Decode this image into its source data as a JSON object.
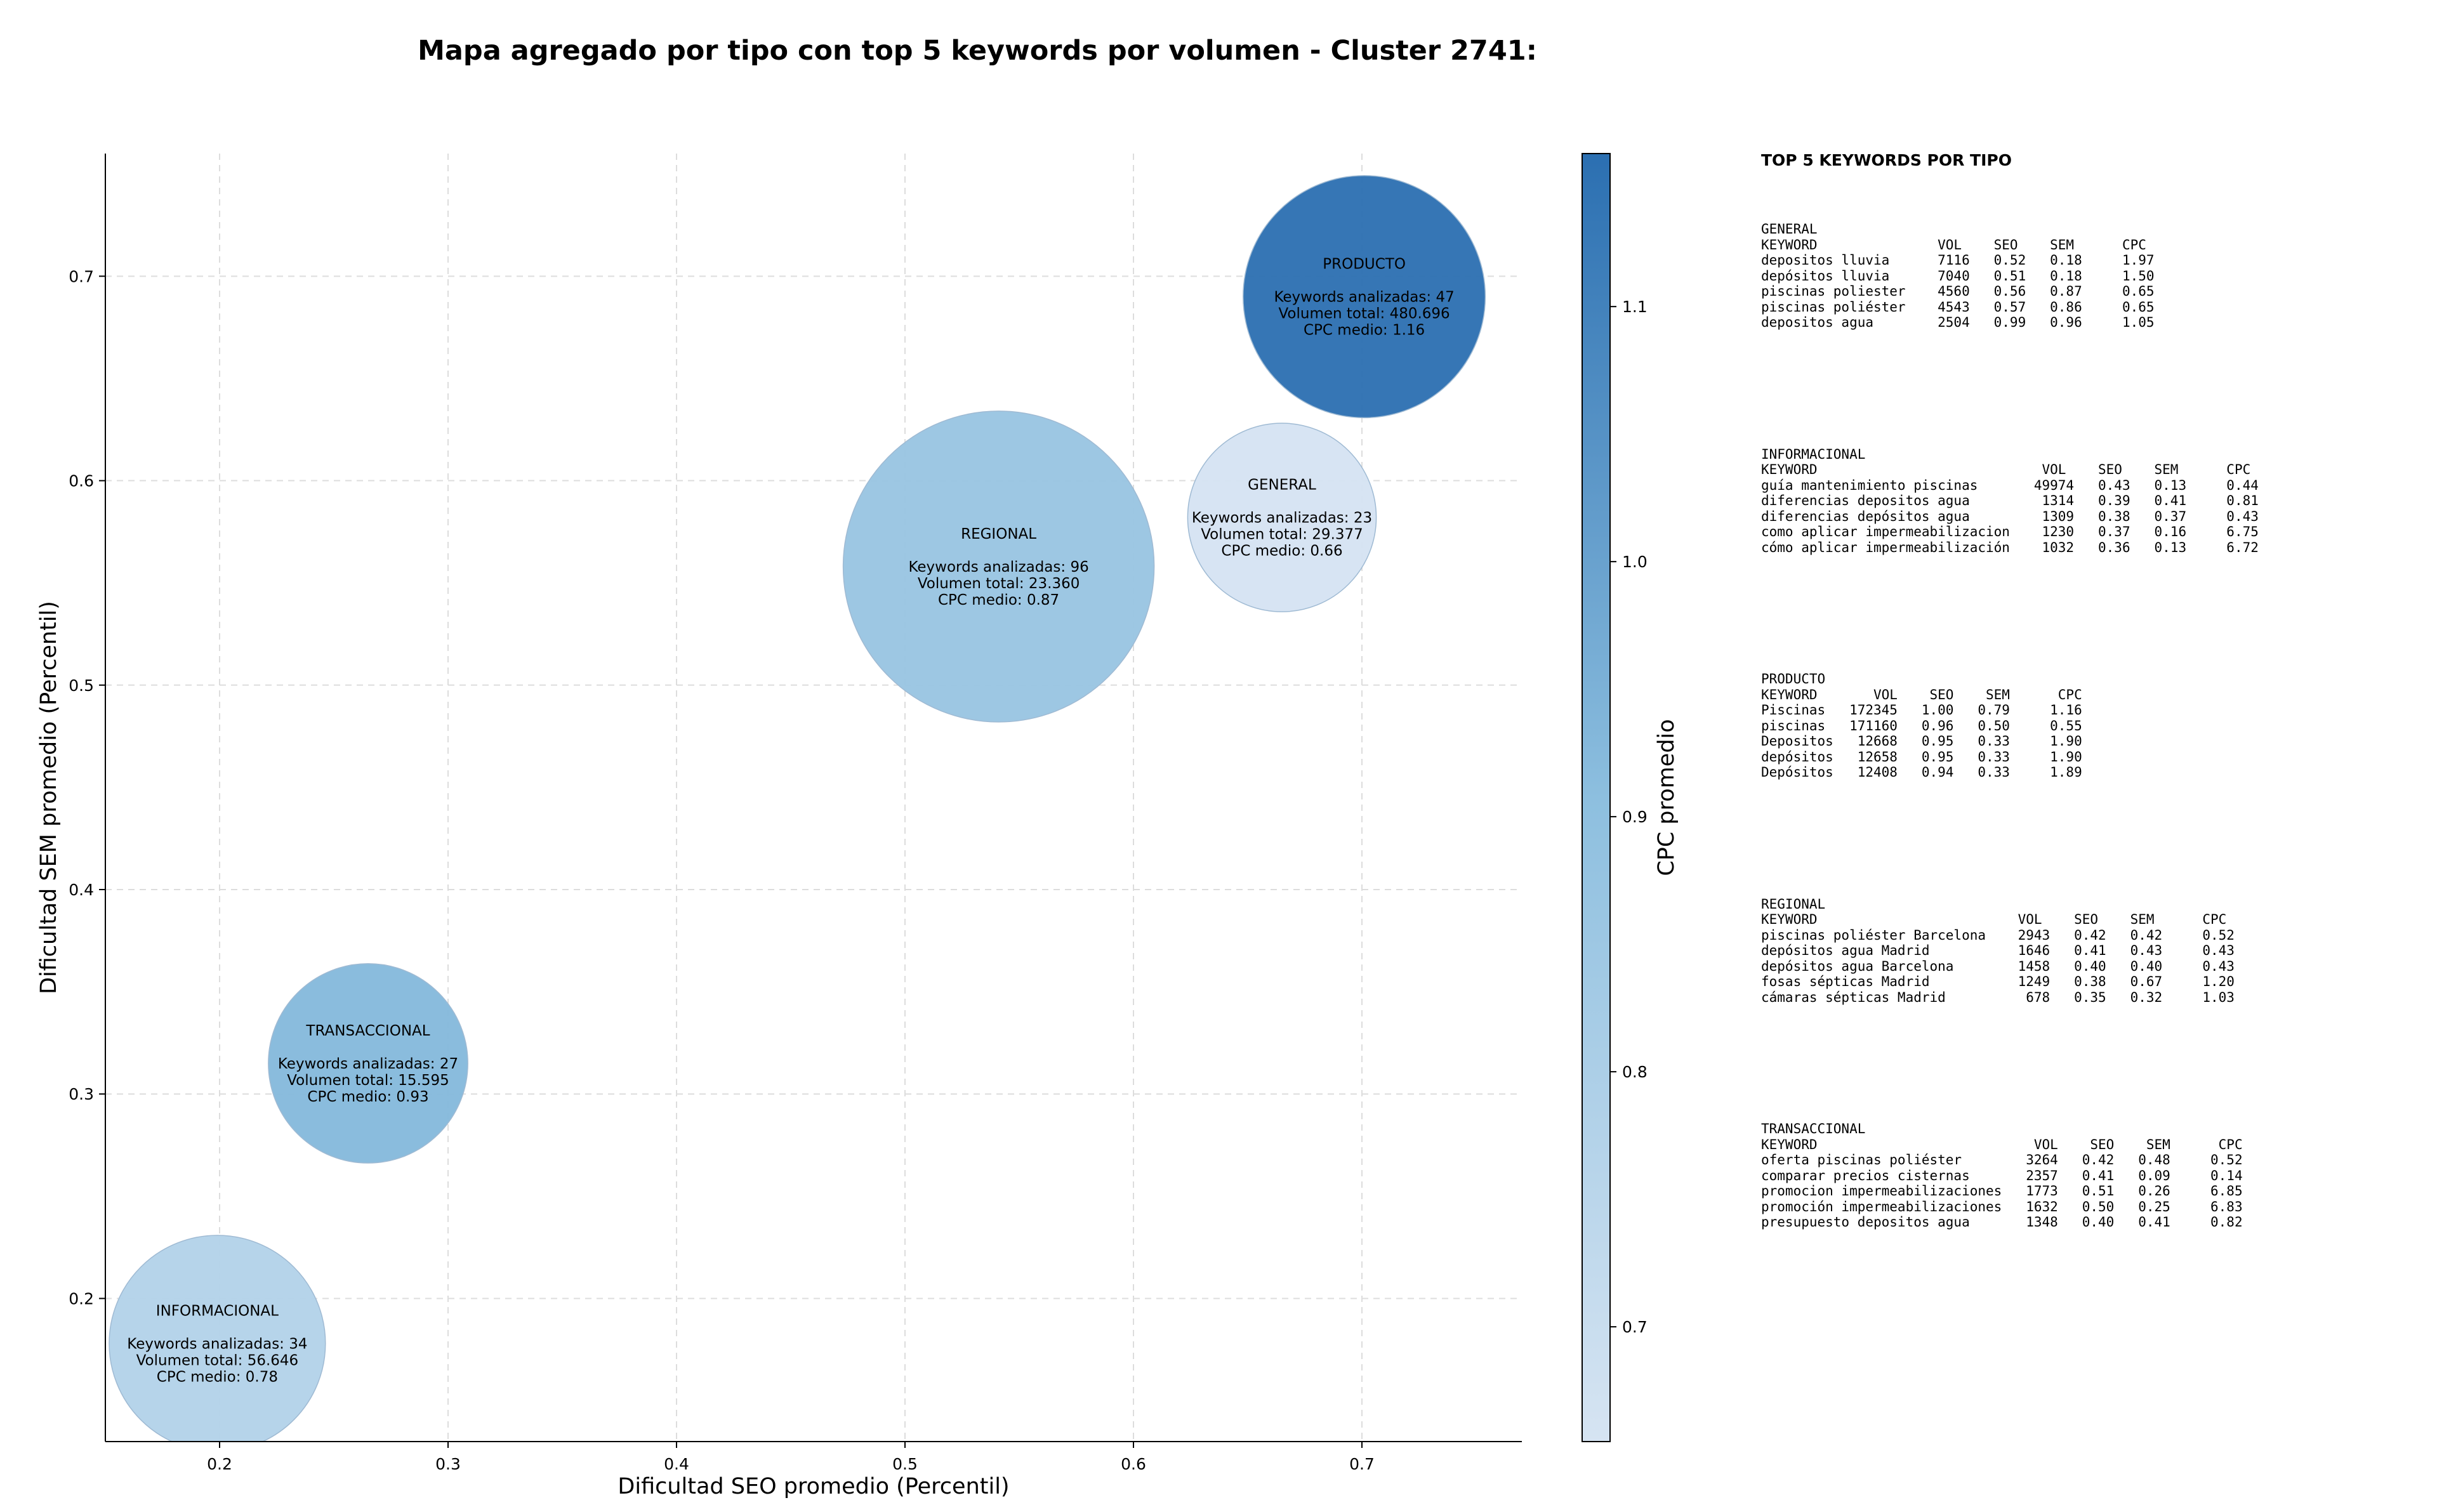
{
  "title": "Mapa agregado por tipo con top 5 keywords por volumen - Cluster 2741:",
  "chart_data": {
    "type": "scatter",
    "subtype": "bubble",
    "xlabel": "Dificultad SEO promedio (Percentil)",
    "ylabel": "Dificultad SEM promedio (Percentil)",
    "xlim": [
      0.15,
      0.77
    ],
    "ylim": [
      0.13,
      0.76
    ],
    "xticks": [
      "0.2",
      "0.3",
      "0.4",
      "0.5",
      "0.6",
      "0.7"
    ],
    "yticks": [
      "0.2",
      "0.3",
      "0.4",
      "0.5",
      "0.6",
      "0.7"
    ],
    "grid": true,
    "colorbar": {
      "label": "CPC promedio",
      "range": [
        0.655,
        1.16
      ],
      "ticks": [
        "0.7",
        "0.8",
        "0.9",
        "1.0",
        "1.1"
      ],
      "colormap": "Blues",
      "color_low": "#d6e4f2",
      "color_high": "#2b6fb1"
    },
    "points": [
      {
        "name": "INFORMACIONAL",
        "x": 0.199,
        "y": 0.178,
        "count": 34,
        "volume": 56646,
        "cpc": 0.78,
        "lines": [
          "Keywords analizadas: 34",
          "Volumen total: 56.646",
          "CPC medio: 0.78"
        ]
      },
      {
        "name": "TRANSACCIONAL",
        "x": 0.265,
        "y": 0.315,
        "count": 27,
        "volume": 15595,
        "cpc": 0.93,
        "lines": [
          "Keywords analizadas: 27",
          "Volumen total: 15.595",
          "CPC medio: 0.93"
        ]
      },
      {
        "name": "REGIONAL",
        "x": 0.541,
        "y": 0.558,
        "count": 96,
        "volume": 23360,
        "cpc": 0.87,
        "lines": [
          "Keywords analizadas: 96",
          "Volumen total: 23.360",
          "CPC medio: 0.87"
        ]
      },
      {
        "name": "GENERAL",
        "x": 0.665,
        "y": 0.582,
        "count": 23,
        "volume": 29377,
        "cpc": 0.66,
        "lines": [
          "Keywords analizadas: 23",
          "Volumen total: 29.377",
          "CPC medio: 0.66"
        ]
      },
      {
        "name": "PRODUCTO",
        "x": 0.701,
        "y": 0.69,
        "count": 47,
        "volume": 480696,
        "cpc": 1.16,
        "lines": [
          "Keywords analizadas: 47",
          "Volumen total: 480.696",
          "CPC medio: 1.16"
        ]
      }
    ]
  },
  "side_panel": {
    "title": "TOP 5 KEYWORDS POR TIPO",
    "blocks": [
      {
        "type": "GENERAL",
        "header": "KEYWORD               VOL    SEO    SEM      CPC",
        "rows": [
          "depositos lluvia      7116   0.52   0.18     1.97",
          "depósitos lluvia      7040   0.51   0.18     1.50",
          "piscinas poliester    4560   0.56   0.87     0.65",
          "piscinas poliéster    4543   0.57   0.86     0.65",
          "depositos agua        2504   0.99   0.96     1.05"
        ]
      },
      {
        "type": "INFORMACIONAL",
        "header": "KEYWORD                            VOL    SEO    SEM      CPC",
        "rows": [
          "guía mantenimiento piscinas       49974   0.43   0.13     0.44",
          "diferencias depositos agua         1314   0.39   0.41     0.81",
          "diferencias depósitos agua         1309   0.38   0.37     0.43",
          "como aplicar impermeabilizacion    1230   0.37   0.16     6.75",
          "cómo aplicar impermeabilización    1032   0.36   0.13     6.72"
        ]
      },
      {
        "type": "PRODUCTO",
        "header": "KEYWORD       VOL    SEO    SEM      CPC",
        "rows": [
          "Piscinas   172345   1.00   0.79     1.16",
          "piscinas   171160   0.96   0.50     0.55",
          "Depositos   12668   0.95   0.33     1.90",
          "depósitos   12658   0.95   0.33     1.90",
          "Depósitos   12408   0.94   0.33     1.89"
        ]
      },
      {
        "type": "REGIONAL",
        "header": "KEYWORD                         VOL    SEO    SEM      CPC",
        "rows": [
          "piscinas poliéster Barcelona    2943   0.42   0.42     0.52",
          "depósitos agua Madrid           1646   0.41   0.43     0.43",
          "depósitos agua Barcelona        1458   0.40   0.40     0.43",
          "fosas sépticas Madrid           1249   0.38   0.67     1.20",
          "cámaras sépticas Madrid          678   0.35   0.32     1.03"
        ]
      },
      {
        "type": "TRANSACCIONAL",
        "header": "KEYWORD                           VOL    SEO    SEM      CPC",
        "rows": [
          "oferta piscinas poliéster        3264   0.42   0.48     0.52",
          "comparar precios cisternas       2357   0.41   0.09     0.14",
          "promocion impermeabilizaciones   1773   0.51   0.26     6.85",
          "promoción impermeabilizaciones   1632   0.50   0.25     6.83",
          "presupuesto depositos agua       1348   0.40   0.41     0.82"
        ]
      }
    ]
  }
}
